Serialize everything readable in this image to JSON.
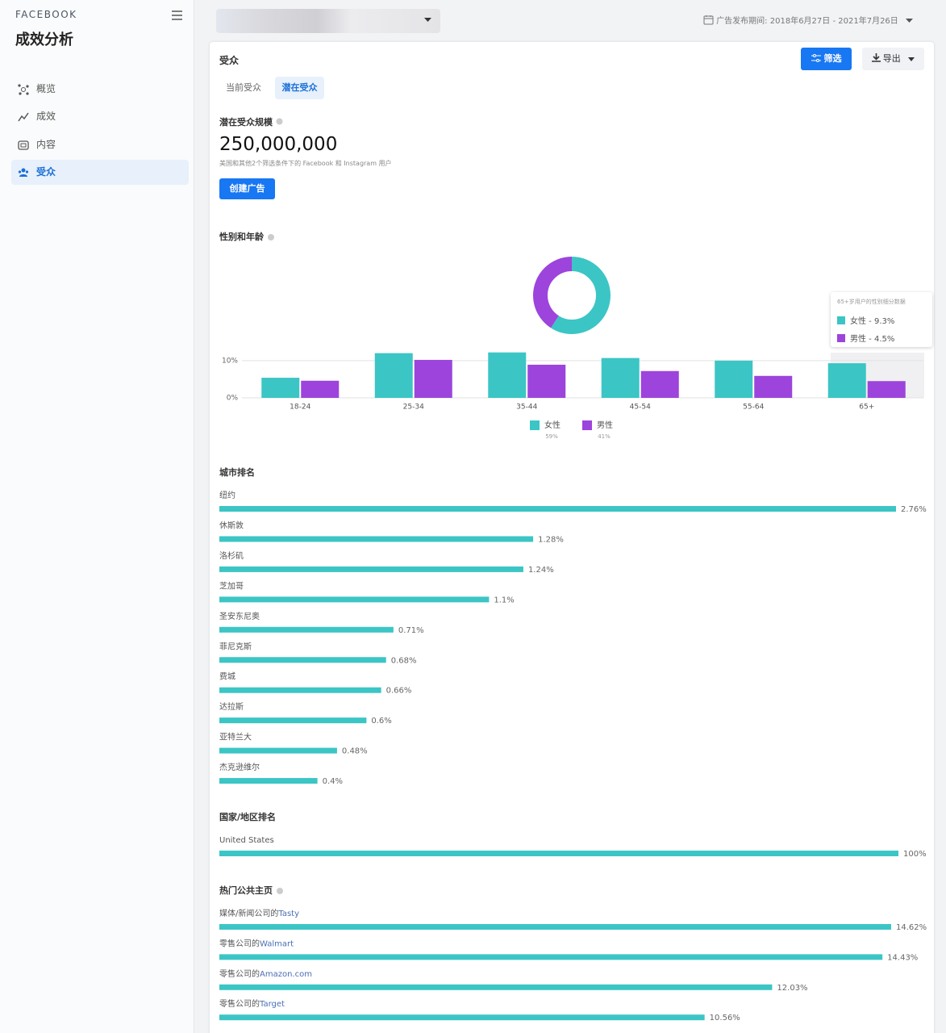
{
  "sidebar": {
    "brand": "FACEBOOK",
    "title": "成效分析",
    "nav": [
      "概览",
      "成效",
      "内容",
      "受众"
    ]
  },
  "header": {
    "date_label": "广告发布期间:",
    "date_range": "2018年6月27日 - 2021年7月26日"
  },
  "panel": {
    "title": "受众",
    "filter_button": "筛选",
    "export_button": "导出",
    "tabs": [
      "当前受众",
      "潜在受众"
    ]
  },
  "audience_size": {
    "label": "潜在受众规模",
    "value": "250,000,000",
    "note": "美国和其他2个筛选条件下的 Facebook 和 Instagram 用户",
    "button": "创建广告"
  },
  "tooltip": {
    "title": "65+岁用户的性别细分数据",
    "items": [
      "女性 - 9.3%",
      "男性 - 4.5%"
    ]
  },
  "chart_data": [
    {
      "type": "bar",
      "title": "性别和年龄",
      "categories": [
        "18-24",
        "25-34",
        "35-44",
        "45-54",
        "55-64",
        "65+"
      ],
      "series": [
        {
          "name": "女性",
          "color": "#3cc5c5",
          "values": [
            5.4,
            12.0,
            12.2,
            10.7,
            10.0,
            9.3
          ],
          "share": 59,
          "share_label": "59%"
        },
        {
          "name": "男性",
          "color": "#9c44dc",
          "values": [
            4.6,
            10.2,
            8.9,
            7.2,
            5.9,
            4.5
          ],
          "share": 41,
          "share_label": "41%"
        }
      ],
      "ylim": [
        0,
        13
      ],
      "yticks": [
        {
          "value": 0,
          "label": "0%"
        },
        {
          "value": 10,
          "label": "10%"
        }
      ],
      "grid": true
    },
    {
      "type": "hbar",
      "title": "城市排名",
      "color": "#3cc5c5",
      "categories": [
        "纽约",
        "休斯敦",
        "洛杉矶",
        "芝加哥",
        "圣安东尼奥",
        "菲尼克斯",
        "费城",
        "达拉斯",
        "亚特兰大",
        "杰克逊维尔"
      ],
      "values": [
        2.76,
        1.28,
        1.24,
        1.1,
        0.71,
        0.68,
        0.66,
        0.6,
        0.48,
        0.4
      ],
      "value_labels": [
        "2.76%",
        "1.28%",
        "1.24%",
        "1.1%",
        "0.71%",
        "0.68%",
        "0.66%",
        "0.6%",
        "0.48%",
        "0.4%"
      ],
      "xlim": [
        0,
        2.76
      ]
    },
    {
      "type": "hbar",
      "title": "国家/地区排名",
      "color": "#3cc5c5",
      "categories": [
        "United States"
      ],
      "values": [
        100
      ],
      "value_labels": [
        "100%"
      ],
      "xlim": [
        0,
        100
      ]
    },
    {
      "type": "hbar",
      "title": "热门公共主页",
      "color": "#3cc5c5",
      "category_prefixes": [
        "媒体/新闻公司的",
        "零售公司的",
        "零售公司的",
        "零售公司的"
      ],
      "categories": [
        "Tasty",
        "Walmart",
        "Amazon.com",
        "Target"
      ],
      "values": [
        14.62,
        14.43,
        12.03,
        10.56
      ],
      "value_labels": [
        "14.62%",
        "14.43%",
        "12.03%",
        "10.56%"
      ],
      "xlim": [
        0,
        14.62
      ]
    }
  ]
}
